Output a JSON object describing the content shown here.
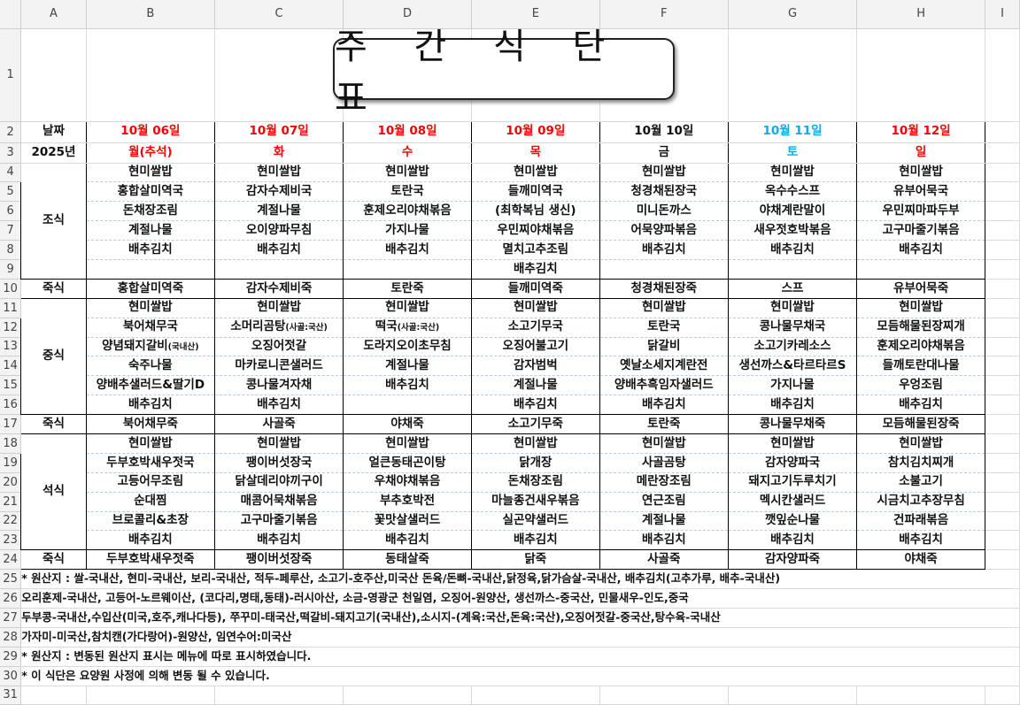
{
  "columns": [
    "A",
    "B",
    "C",
    "D",
    "E",
    "F",
    "G",
    "H",
    "I"
  ],
  "title": "주 간 식 단 표",
  "colors": {
    "red": "#ff0000",
    "blue": "#00b0f0",
    "black": "#111111"
  },
  "header": {
    "date_label": "날짜",
    "year_label": "2025년"
  },
  "days": [
    {
      "date": "10월 06일",
      "weekday": "월(추석)",
      "color": "#ff0000"
    },
    {
      "date": "10월 07일",
      "weekday": "화",
      "color": "#ff0000"
    },
    {
      "date": "10월 08일",
      "weekday": "수",
      "color": "#ff0000"
    },
    {
      "date": "10월 09일",
      "weekday": "목",
      "color": "#ff0000"
    },
    {
      "date": "10월 10일",
      "weekday": "금",
      "color": "#111111"
    },
    {
      "date": "10월 11일",
      "weekday": "토",
      "color": "#00b0f0"
    },
    {
      "date": "10월 12일",
      "weekday": "일",
      "color": "#ff0000"
    }
  ],
  "meals": [
    {
      "label": "조식",
      "rows": [
        [
          "현미쌀밥",
          "현미쌀밥",
          "현미쌀밥",
          "현미쌀밥",
          "현미쌀밥",
          "현미쌀밥",
          "현미쌀밥"
        ],
        [
          "홍합살미역국",
          "감자수제비국",
          "토란국",
          "들깨미역국",
          "청경채된장국",
          "옥수수스프",
          "유부어묵국"
        ],
        [
          "돈채장조림",
          "계절나물",
          "훈제오리야채볶음",
          "(최학복님 생신)",
          "미니돈까스",
          "야채계란말이",
          "우민찌마파두부"
        ],
        [
          "계절나물",
          "오이양파무침",
          "가지나물",
          "우민찌야채볶음",
          "어묵양파볶음",
          "새우젓호박볶음",
          "고구마줄기볶음"
        ],
        [
          "배추김치",
          "배추김치",
          "배추김치",
          "멸치고추조림",
          "배추김치",
          "배추김치",
          "배추김치"
        ],
        [
          "",
          "",
          "",
          "배추김치",
          "",
          "",
          ""
        ]
      ]
    },
    {
      "label": "죽식",
      "rows": [
        [
          "홍합살미역죽",
          "감자수제비죽",
          "토란죽",
          "들깨미역죽",
          "청경채된장죽",
          "스프",
          "유부어묵죽"
        ]
      ]
    },
    {
      "label": "중식",
      "rows": [
        [
          "현미쌀밥",
          "현미쌀밥",
          "현미쌀밥",
          "현미쌀밥",
          "현미쌀밥",
          "현미쌀밥",
          "현미쌀밥"
        ],
        [
          "북어채무국",
          {
            "text": "소머리곰탕",
            "note": "(사골:국산)"
          },
          {
            "text": "떡국",
            "note": "(사골:국산)"
          },
          "소고기무국",
          "토란국",
          "콩나물무채국",
          "모듬해물된장찌개"
        ],
        [
          {
            "text": "양념돼지갈비",
            "note": "(국내산)"
          },
          "오징어젓갈",
          "도라지오이초무침",
          "오징어불고기",
          "닭갈비",
          "소고기카레소스",
          "훈제오리야채볶음"
        ],
        [
          "숙주나물",
          "마카로니콘샐러드",
          "계절나물",
          "감자범벅",
          "옛날소세지계란전",
          "생선까스&타르타르S",
          "들깨토란대나물"
        ],
        [
          "양배추샐러드&딸기D",
          "콩나물겨자채",
          "배추김치",
          "계절나물",
          "양배추흑임자샐러드",
          "가지나물",
          "우엉조림"
        ],
        [
          "배추김치",
          "배추김치",
          "",
          "배추김치",
          "배추김치",
          "배추김치",
          "배추김치"
        ]
      ]
    },
    {
      "label": "죽식",
      "rows": [
        [
          "북어채무죽",
          "사골죽",
          "야채죽",
          "소고기무죽",
          "토란죽",
          "콩나물무채죽",
          "모듬해물된장죽"
        ]
      ]
    },
    {
      "label": "석식",
      "rows": [
        [
          "현미쌀밥",
          "현미쌀밥",
          "현미쌀밥",
          "현미쌀밥",
          "현미쌀밥",
          "현미쌀밥",
          "현미쌀밥"
        ],
        [
          "두부호박새우젓국",
          "팽이버섯장국",
          "얼큰동태곤이탕",
          "닭개장",
          "사골곰탕",
          "감자양파국",
          "참치김치찌개"
        ],
        [
          "고등어무조림",
          "닭살데리야끼구이",
          "우채야채볶음",
          "돈채장조림",
          "메란장조림",
          "돼지고기두루치기",
          "소불고기"
        ],
        [
          "순대찜",
          "매콤어묵채볶음",
          "부추호박전",
          "마늘종건새우볶음",
          "연근조림",
          "멕시칸샐러드",
          "시금치고추장무침"
        ],
        [
          "브로콜리&초장",
          "고구마줄기볶음",
          "꽃맛살샐러드",
          "실곤약샐러드",
          "계절나물",
          "깻잎순나물",
          "건파래볶음"
        ],
        [
          "배추김치",
          "배추김치",
          "배추김치",
          "배추김치",
          "배추김치",
          "배추김치",
          "배추김치"
        ]
      ]
    },
    {
      "label": "죽식",
      "rows": [
        [
          "두부호박새우젓죽",
          "팽이버섯장죽",
          "동태살죽",
          "닭죽",
          "사골죽",
          "감자양파죽",
          "야채죽"
        ]
      ]
    }
  ],
  "notes": [
    "* 원산지 : 쌀-국내산, 현미-국내산, 보리-국내산, 적두-페루산, 소고기-호주산,미국산 돈육/돈뼈-국내산,닭정육,닭가슴살-국내산, 배추김치(고추가루, 배추-국내산)",
    "   오리훈제-국내산, 고등어-노르웨이산, (코다리,명태,동태)-러시아산, 소금-영광군 천일염, 오징어-원양산, 생선까스-중국산, 민물새우-인도,중국",
    "   두부콩-국내산,수입산(미국,호주,캐나다등), 쭈꾸미-태국산,떡갈비-돼지고기(국내산),소시지-(계육:국산,돈육:국산),오징어젓갈-중국산,탕수육-국내산",
    "  가자미-미국산,참치캔(가다랑어)-원양산,  임연수어:미국산",
    "* 원산지 : 변동된 원산지 표시는 메뉴에 따로 표시하였습니다.",
    "* 이 식단은 요양원 사정에 의해 변동 될 수 있습니다."
  ]
}
